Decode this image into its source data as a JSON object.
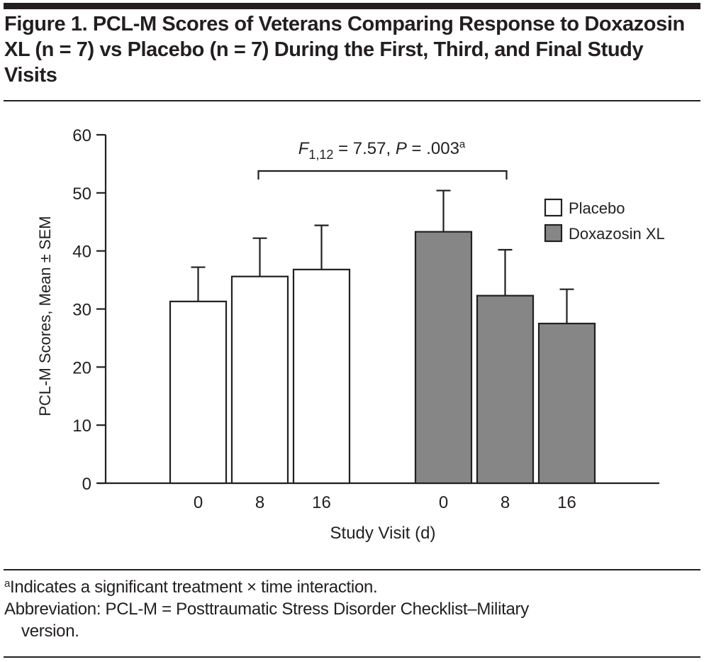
{
  "figure": {
    "title": "Figure 1. PCL-M Scores of Veterans Comparing Response to Doxazosin XL (n = 7) vs Placebo (n = 7) During the First, Third, and Final Study Visits",
    "footnote_marker": "a",
    "footnote_text": "Indicates a significant treatment × time interaction.",
    "abbreviation_line1": "Abbreviation: PCL-M = Posttraumatic Stress Disorder Checklist–Military",
    "abbreviation_line2": "version."
  },
  "chart_data": {
    "type": "bar",
    "title": "",
    "xlabel": "Study Visit (d)",
    "ylabel": "PCL-M Scores, Mean ± SEM",
    "ylim": [
      0,
      60
    ],
    "yticks": [
      0,
      10,
      20,
      30,
      40,
      50,
      60
    ],
    "grid": false,
    "legend_position": "top-right",
    "categories": [
      "0",
      "8",
      "16"
    ],
    "series": [
      {
        "name": "Placebo",
        "color": "#ffffff",
        "values": [
          31.3,
          35.6,
          36.8
        ],
        "sem": [
          5.9,
          6.6,
          7.6
        ]
      },
      {
        "name": "Doxazosin XL",
        "color": "#868686",
        "values": [
          43.3,
          32.3,
          27.5
        ],
        "sem": [
          7.1,
          7.9,
          5.9
        ]
      }
    ],
    "annotation": {
      "stat_letter": "F",
      "stat_subscript": "1,12",
      "stat_rest": " = 7.57, ",
      "p_letter": "P",
      "p_rest": " = .003",
      "marker": "a",
      "bracket_from": "Placebo 8",
      "bracket_to": "Doxazosin XL 8"
    }
  }
}
